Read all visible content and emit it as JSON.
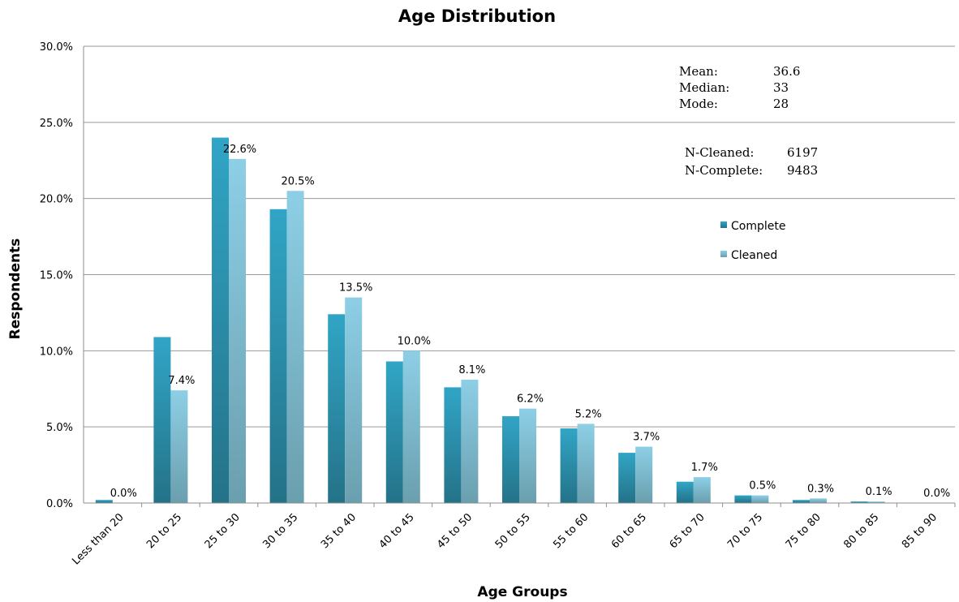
{
  "chart_data": {
    "type": "bar",
    "title": "Age Distribution",
    "xlabel": "Age Groups",
    "ylabel": "Respondents",
    "ylim": [
      0,
      30
    ],
    "yticks": [
      0,
      5,
      10,
      15,
      20,
      25,
      30
    ],
    "ytick_labels": [
      "0.0%",
      "5.0%",
      "10.0%",
      "15.0%",
      "20.0%",
      "25.0%",
      "30.0%"
    ],
    "grid": true,
    "legend_position": "right",
    "categories": [
      "Less than 20",
      "20 to 25",
      "25 to 30",
      "30 to 35",
      "35 to 40",
      "40 to 45",
      "45 to 50",
      "50 to 55",
      "55 to 60",
      "60 to 65",
      "65 to 70",
      "70 to 75",
      "75 to 80",
      "80 to 85",
      "85 to 90"
    ],
    "series": [
      {
        "name": "Complete",
        "color": "#2b8fae",
        "values": [
          0.2,
          10.9,
          24.0,
          19.3,
          12.4,
          9.3,
          7.6,
          5.7,
          4.9,
          3.3,
          1.4,
          0.5,
          0.2,
          0.1,
          0.0
        ]
      },
      {
        "name": "Cleaned",
        "color": "#84c6dd",
        "values": [
          0.0,
          7.4,
          22.6,
          20.5,
          13.5,
          10.0,
          8.1,
          6.2,
          5.2,
          3.7,
          1.7,
          0.5,
          0.3,
          0.1,
          0.0
        ],
        "data_labels": [
          "0.0%",
          "7.4%",
          "22.6%",
          "20.5%",
          "13.5%",
          "10.0%",
          "8.1%",
          "6.2%",
          "5.2%",
          "3.7%",
          "1.7%",
          "0.5%",
          "0.3%",
          "0.1%",
          "0.0%"
        ]
      }
    ],
    "annotations": {
      "stats": [
        {
          "label": "Mean:",
          "value": "36.6"
        },
        {
          "label": "Median:",
          "value": "33"
        },
        {
          "label": "Mode:",
          "value": "28"
        }
      ],
      "counts": [
        {
          "label": "N-Cleaned:",
          "value": "6197"
        },
        {
          "label": "N-Complete:",
          "value": "9483"
        }
      ]
    }
  }
}
